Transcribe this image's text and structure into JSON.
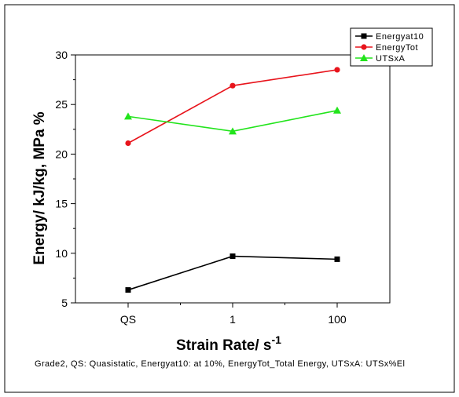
{
  "chart_data": {
    "type": "line",
    "title": "",
    "xlabel_main": "Strain Rate/ s",
    "xlabel_sup": "-1",
    "ylabel": "Energy/ kJ/kg, MPa %",
    "categories": [
      "QS",
      "1",
      "100"
    ],
    "yticks": [
      "5",
      "10",
      "15",
      "20",
      "25",
      "30"
    ],
    "ylim": [
      5,
      30
    ],
    "grid": false,
    "legend_position": "top-right",
    "series": [
      {
        "name": "Energyat10",
        "values": [
          6.3,
          9.7,
          9.4
        ],
        "color": "#000000",
        "marker": "square"
      },
      {
        "name": "EnergyTot",
        "values": [
          21.1,
          26.9,
          28.5
        ],
        "color": "#e8141c",
        "marker": "circle"
      },
      {
        "name": "UTSxA",
        "values": [
          23.8,
          22.3,
          24.4
        ],
        "color": "#22e41c",
        "marker": "triangle"
      }
    ]
  },
  "caption": "Grade2, QS: Quasistatic, Energyat10: at 10%, EnergyTot_Total Energy, UTSxA: UTSx%El"
}
